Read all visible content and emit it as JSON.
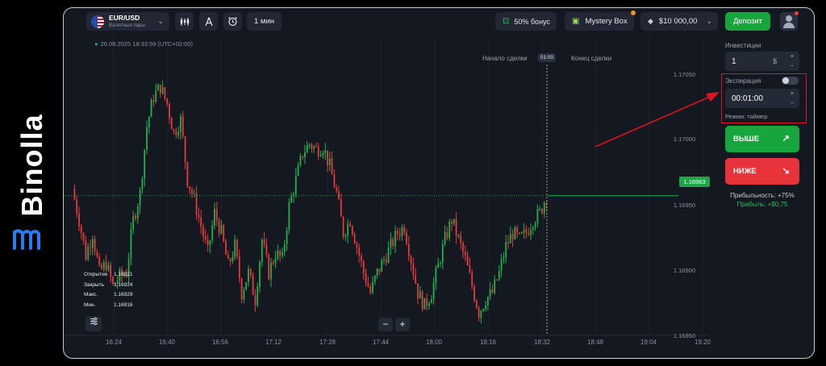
{
  "brand": {
    "name": "Binolla",
    "logo": "binolla-logo"
  },
  "header": {
    "asset": {
      "name": "EUR/USD",
      "subtitle": "Валютные пары",
      "flag": "eu-us-flag"
    },
    "tools": [
      "candles-icon",
      "drawing-icon",
      "timer-icon"
    ],
    "timeframe": "1 мин",
    "bonus": "50% бонус",
    "mystery_box": "Mystery Box",
    "balance": "$10 000,00",
    "deposit": "Депозит"
  },
  "chart": {
    "timestamp": "26.09.2025 18:33:59 (UTC+02:00)",
    "deal_start": "Начало сделки",
    "deal_end": "Конец сделки",
    "deal_timer": "01:00",
    "price_ticks": [
      "1.17050",
      "1.17000",
      "1.16950",
      "1.16900",
      "1.16850"
    ],
    "current_price": "1.16963",
    "time_ticks": [
      "16:24",
      "16:40",
      "16:56",
      "17:12",
      "17:28",
      "17:44",
      "18:00",
      "18:16",
      "18:32",
      "18:48",
      "19:04",
      "19:20"
    ],
    "ohlc": [
      {
        "label": "Открытие",
        "value": "1.16921"
      },
      {
        "label": "Закрыть",
        "value": "1.16924"
      },
      {
        "label": "Макс.",
        "value": "1.16929"
      },
      {
        "label": "Мин.",
        "value": "1.16916"
      }
    ],
    "colors": {
      "up": "#22b14c",
      "down": "#e8393d",
      "background": "#141821"
    }
  },
  "chart_data": {
    "type": "candlestick",
    "x_range": [
      "16:18",
      "19:22"
    ],
    "y_range": [
      1.1685,
      1.1708
    ],
    "y_ticks": [
      1.1685,
      1.169,
      1.1695,
      1.17,
      1.1705
    ],
    "current_price": 1.16963,
    "close_path": [
      1.16968,
      1.16945,
      1.16918,
      1.16935,
      1.16905,
      1.16912,
      1.16895,
      1.16902,
      1.16905,
      1.16945,
      1.16965,
      1.17015,
      1.17038,
      1.17045,
      1.17032,
      1.1701,
      1.1702,
      1.16975,
      1.1696,
      1.1694,
      1.1692,
      1.1695,
      1.16935,
      1.1691,
      1.16925,
      1.1689,
      1.16905,
      1.16885,
      1.1693,
      1.16905,
      1.1692,
      1.16915,
      1.16955,
      1.16975,
      1.16995,
      1.17002,
      1.16998,
      1.17,
      1.16985,
      1.16965,
      1.16935,
      1.16945,
      1.16925,
      1.16905,
      1.1689,
      1.16905,
      1.16915,
      1.16925,
      1.16935,
      1.1694,
      1.16915,
      1.1689,
      1.1688,
      1.1689,
      1.1691,
      1.1693,
      1.16945,
      1.1693,
      1.16915,
      1.16895,
      1.16875,
      1.16885,
      1.1689,
      1.16905,
      1.16925,
      1.16935,
      1.1693,
      1.16935,
      1.16945,
      1.1695,
      1.16963
    ]
  },
  "panel": {
    "investment_label": "Инвестиции",
    "investment_value": "1",
    "investment_currency": "$",
    "expiration_label": "Экспирация",
    "expiration_value": "00:01:00",
    "mode": "Режим: таймер",
    "up_label": "ВЫШЕ",
    "down_label": "НИЖЕ",
    "profitability": "Прибыльность: +75%",
    "profit": "Прибыль: +$0,75"
  }
}
